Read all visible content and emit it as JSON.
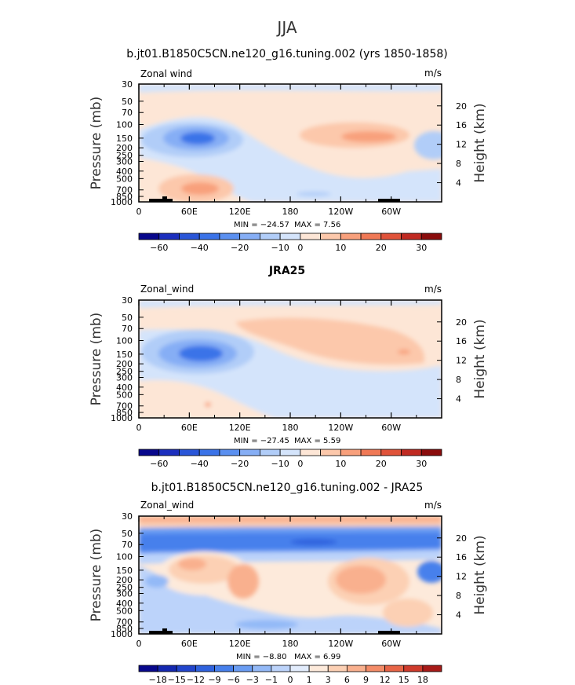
{
  "figure": {
    "title": "JJA"
  },
  "chart_data": [
    {
      "type": "contour",
      "title": "b.jt01.B1850C5CN.ne120_g16.tuning.002 (yrs 1850-1858)",
      "variable": "Zonal wind",
      "units": "m/s",
      "xlabel": "",
      "ylabel": "Pressure (mb)",
      "ylabel_right": "Height (km)",
      "x_ticks": [
        "0",
        "60E",
        "120E",
        "180",
        "120W",
        "60W"
      ],
      "x_range": [
        0,
        360
      ],
      "y_ticks": [
        "30",
        "50",
        "70",
        "100",
        "150",
        "200",
        "250",
        "300",
        "400",
        "500",
        "700",
        "850",
        "1000"
      ],
      "y_ticks_right": [
        "20",
        "16",
        "12",
        "8",
        "4"
      ],
      "stats": {
        "min": -24.57,
        "max": 7.56
      },
      "min_text": "MIN =  −24.57",
      "max_text": "MAX =    7.56",
      "colorbar": {
        "levels": [
          "−60",
          "−40",
          "−20",
          "−10",
          "0",
          "10",
          "20",
          "30"
        ],
        "colors": [
          "#08088c",
          "#1c2fbe",
          "#2a56d8",
          "#3b73e8",
          "#5b90f0",
          "#86aef5",
          "#b1cdf8",
          "#d4e4fb",
          "#fde6d6",
          "#fcc8ab",
          "#f8a07c",
          "#f07956",
          "#e0533a",
          "#c02a22",
          "#8a0c0c"
        ]
      }
    },
    {
      "type": "contour",
      "title": "JRA25",
      "variable": "Zonal_wind",
      "units": "m/s",
      "xlabel": "",
      "ylabel": "Pressure (mb)",
      "ylabel_right": "Height (km)",
      "x_ticks": [
        "0",
        "60E",
        "120E",
        "180",
        "120W",
        "60W"
      ],
      "x_range": [
        0,
        360
      ],
      "y_ticks": [
        "30",
        "50",
        "70",
        "100",
        "150",
        "200",
        "250",
        "300",
        "400",
        "500",
        "700",
        "850",
        "1000"
      ],
      "y_ticks_right": [
        "20",
        "16",
        "12",
        "8",
        "4"
      ],
      "stats": {
        "min": -27.45,
        "max": 5.59
      },
      "min_text": "MIN =  −27.45",
      "max_text": "MAX =    5.59",
      "colorbar": {
        "levels": [
          "−60",
          "−40",
          "−20",
          "−10",
          "0",
          "10",
          "20",
          "30"
        ],
        "colors": [
          "#08088c",
          "#1c2fbe",
          "#2a56d8",
          "#3b73e8",
          "#5b90f0",
          "#86aef5",
          "#b1cdf8",
          "#d4e4fb",
          "#fde6d6",
          "#fcc8ab",
          "#f8a07c",
          "#f07956",
          "#e0533a",
          "#c02a22",
          "#8a0c0c"
        ]
      }
    },
    {
      "type": "contour",
      "title": "b.jt01.B1850C5CN.ne120_g16.tuning.002 - JRA25",
      "variable": "Zonal_wind",
      "units": "m/s",
      "xlabel": "",
      "ylabel": "Pressure (mb)",
      "ylabel_right": "Height (km)",
      "x_ticks": [
        "0",
        "60E",
        "120E",
        "180",
        "120W",
        "60W"
      ],
      "x_range": [
        0,
        360
      ],
      "y_ticks": [
        "30",
        "50",
        "70",
        "100",
        "150",
        "200",
        "250",
        "300",
        "400",
        "500",
        "700",
        "850",
        "1000"
      ],
      "y_ticks_right": [
        "20",
        "16",
        "12",
        "8",
        "4"
      ],
      "stats": {
        "min": -8.8,
        "max": 6.99
      },
      "min_text": "MIN =  −8.80",
      "max_text": "MAX =    6.99",
      "colorbar": {
        "levels": [
          "−18",
          "−15",
          "−12",
          "−9",
          "−6",
          "−3",
          "−1",
          "0",
          "1",
          "3",
          "6",
          "9",
          "12",
          "15",
          "18"
        ],
        "colors": [
          "#08088c",
          "#1428b0",
          "#2245cc",
          "#2f62de",
          "#4780ec",
          "#6a9df3",
          "#93b9f7",
          "#bcd3fa",
          "#e2ecfc",
          "#fdeadb",
          "#fcd0b4",
          "#f9b08e",
          "#f48c68",
          "#e86547",
          "#cf3b2c",
          "#a81a18"
        ]
      }
    }
  ]
}
